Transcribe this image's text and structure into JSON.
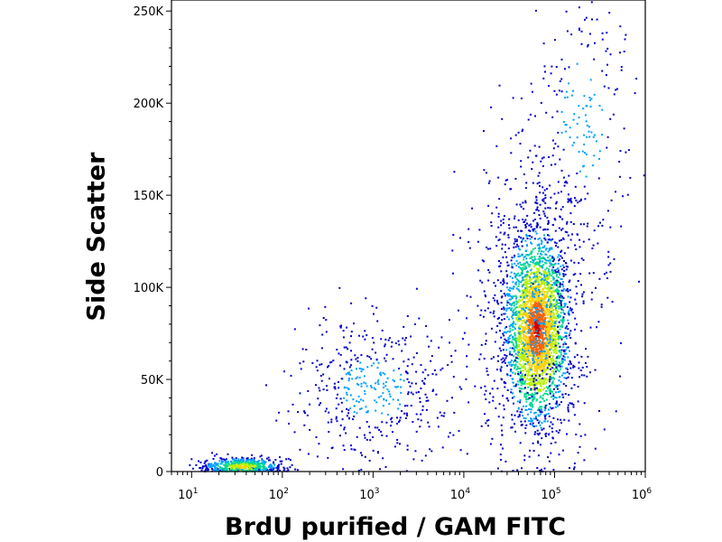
{
  "chart_data": {
    "type": "scatter",
    "title": "",
    "xlabel": "BrdU purified / GAM FITC",
    "ylabel": "Side Scatter",
    "x_scale": "log",
    "xlim": [
      6,
      1000000
    ],
    "ylim": [
      0,
      256000
    ],
    "grid": false,
    "legend": "none",
    "x_ticks": [
      {
        "base": "10",
        "exp": "1",
        "value": 10
      },
      {
        "base": "10",
        "exp": "2",
        "value": 100
      },
      {
        "base": "10",
        "exp": "3",
        "value": 1000
      },
      {
        "base": "10",
        "exp": "4",
        "value": 10000
      },
      {
        "base": "10",
        "exp": "5",
        "value": 100000
      },
      {
        "base": "10",
        "exp": "6",
        "value": 1000000
      }
    ],
    "y_ticks": [
      {
        "label": "0",
        "value": 0
      },
      {
        "label": "50K",
        "value": 50000
      },
      {
        "label": "100K",
        "value": 100000
      },
      {
        "label": "150K",
        "value": 150000
      },
      {
        "label": "200K",
        "value": 200000
      },
      {
        "label": "250K",
        "value": 250000
      }
    ],
    "density_colors": [
      "#0000cc",
      "#00a0ff",
      "#00d890",
      "#b8f000",
      "#ffd000",
      "#ff6000",
      "#cc0000"
    ],
    "populations": [
      {
        "x_log_center": 4.8,
        "y_center": 78000,
        "x_log_sd": 0.17,
        "y_sd": 25000,
        "rotation": 0.55,
        "count": 2600
      },
      {
        "x_log_center": 4.75,
        "y_center": 90000,
        "x_log_sd": 0.35,
        "y_sd": 45000,
        "rotation": 0.4,
        "count": 900
      },
      {
        "x_log_center": 3.0,
        "y_center": 45000,
        "x_log_sd": 0.5,
        "y_sd": 22000,
        "rotation": 0.6,
        "count": 450
      },
      {
        "x_log_center": 1.55,
        "y_center": 3000,
        "x_log_sd": 0.22,
        "y_sd": 2500,
        "rotation": 0.1,
        "count": 550
      },
      {
        "x_log_center": 5.3,
        "y_center": 190000,
        "x_log_sd": 0.3,
        "y_sd": 40000,
        "rotation": 0.2,
        "count": 220
      }
    ]
  }
}
